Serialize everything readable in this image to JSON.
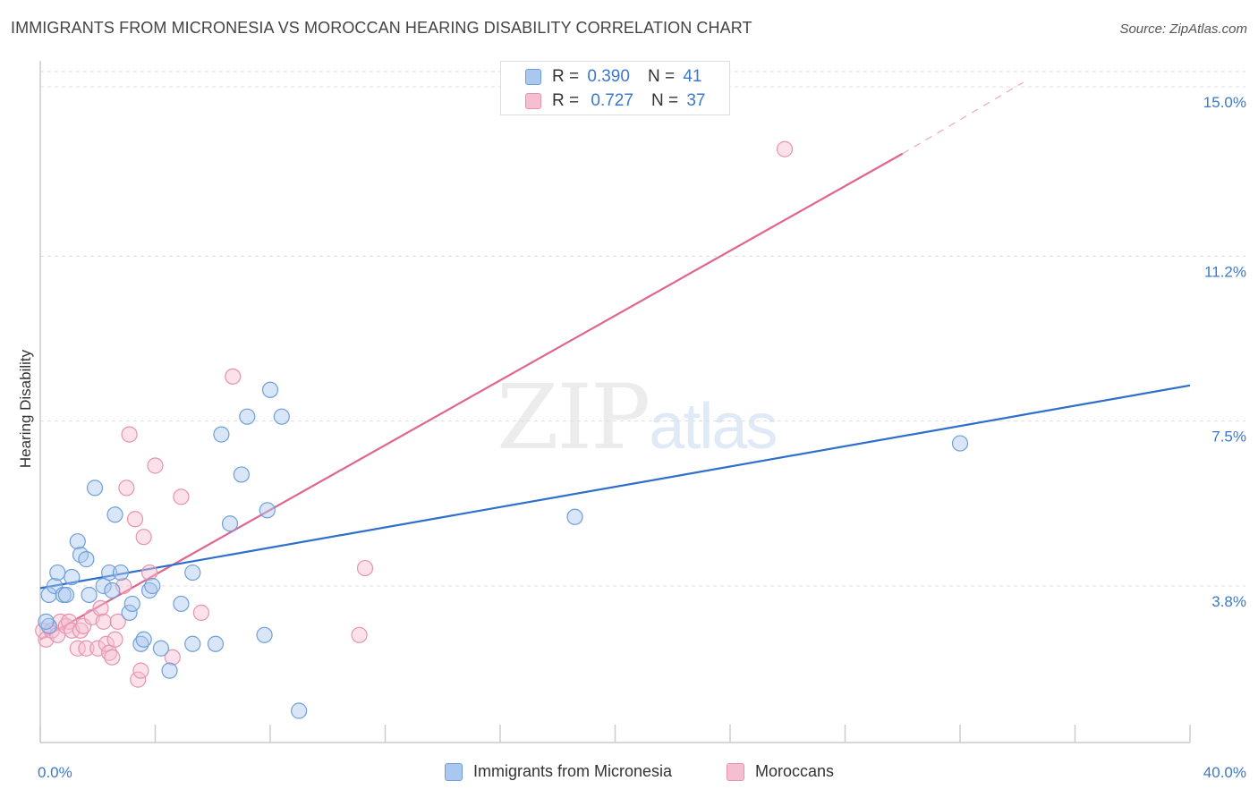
{
  "title": "IMMIGRANTS FROM MICRONESIA VS MOROCCAN HEARING DISABILITY CORRELATION CHART",
  "source": "Source: ZipAtlas.com",
  "watermark": {
    "part1": "ZIP",
    "part2": "atlas"
  },
  "legend": {
    "rows": [
      {
        "r_label": "R =",
        "r_value": "0.390",
        "n_label": "N =",
        "n_value": "41"
      },
      {
        "r_label": "R =",
        "r_value": "0.727",
        "n_label": "N =",
        "n_value": "37"
      }
    ]
  },
  "chart_data": {
    "type": "scatter",
    "title": "IMMIGRANTS FROM MICRONESIA VS MOROCCAN HEARING DISABILITY CORRELATION CHART",
    "xlabel": "",
    "ylabel": "Hearing Disability",
    "xlim": [
      0,
      40
    ],
    "ylim": [
      0,
      15.6
    ],
    "x_tick_labels": [
      "0.0%",
      "40.0%"
    ],
    "y_ticks": [
      3.8,
      7.5,
      11.2,
      15.0
    ],
    "y_tick_labels": [
      "3.8%",
      "7.5%",
      "11.2%",
      "15.0%"
    ],
    "grid": "horizontal dashed",
    "legend_position": "top-center",
    "colors": {
      "micronesia_fill": "#aac8ef",
      "micronesia_stroke": "#6f9fd8",
      "micronesia_line": "#2d6fc9",
      "moroccan_fill": "#f6bfd1",
      "moroccan_stroke": "#e693b0",
      "moroccan_line": "#e0648f",
      "tick_text": "#3b78c9"
    },
    "series": [
      {
        "name": "Immigrants from Micronesia",
        "r": 0.39,
        "n": 41,
        "trend": {
          "x0": 0,
          "y0": 3.75,
          "x1": 40,
          "y1": 8.3
        },
        "points": [
          [
            0.3,
            2.9
          ],
          [
            0.3,
            3.6
          ],
          [
            0.5,
            3.8
          ],
          [
            0.6,
            4.1
          ],
          [
            0.8,
            3.6
          ],
          [
            0.9,
            3.6
          ],
          [
            1.1,
            4.0
          ],
          [
            1.3,
            4.8
          ],
          [
            1.4,
            4.5
          ],
          [
            1.6,
            4.4
          ],
          [
            1.7,
            3.6
          ],
          [
            1.9,
            6.0
          ],
          [
            2.2,
            3.8
          ],
          [
            2.4,
            4.1
          ],
          [
            2.5,
            3.7
          ],
          [
            2.6,
            5.4
          ],
          [
            2.8,
            4.1
          ],
          [
            3.1,
            3.2
          ],
          [
            3.2,
            3.4
          ],
          [
            3.5,
            2.5
          ],
          [
            3.6,
            2.6
          ],
          [
            3.8,
            3.7
          ],
          [
            3.9,
            3.8
          ],
          [
            4.2,
            2.4
          ],
          [
            4.5,
            1.9
          ],
          [
            4.9,
            3.4
          ],
          [
            5.3,
            4.1
          ],
          [
            5.3,
            2.5
          ],
          [
            6.1,
            2.5
          ],
          [
            6.3,
            7.2
          ],
          [
            6.6,
            5.2
          ],
          [
            7.0,
            6.3
          ],
          [
            7.2,
            7.6
          ],
          [
            7.8,
            2.7
          ],
          [
            7.9,
            5.5
          ],
          [
            8.0,
            8.2
          ],
          [
            8.4,
            7.6
          ],
          [
            9.0,
            1.0
          ],
          [
            18.6,
            5.35
          ],
          [
            32.0,
            7.0
          ],
          [
            0.2,
            3.0
          ]
        ]
      },
      {
        "name": "Moroccans",
        "r": 0.727,
        "n": 37,
        "trend": {
          "x0": 0,
          "y0": 2.6,
          "x1": 30,
          "y1": 13.5
        },
        "trend_dashed": {
          "x0": 30,
          "y0": 13.5,
          "x1": 34.2,
          "y1": 15.1
        },
        "points": [
          [
            0.1,
            2.8
          ],
          [
            0.2,
            2.6
          ],
          [
            0.4,
            2.8
          ],
          [
            0.6,
            2.7
          ],
          [
            0.7,
            3.0
          ],
          [
            0.9,
            2.9
          ],
          [
            1.0,
            3.0
          ],
          [
            1.1,
            2.8
          ],
          [
            1.3,
            2.4
          ],
          [
            1.4,
            2.8
          ],
          [
            1.5,
            2.9
          ],
          [
            1.6,
            2.4
          ],
          [
            1.8,
            3.1
          ],
          [
            2.0,
            2.4
          ],
          [
            2.1,
            3.3
          ],
          [
            2.2,
            3.0
          ],
          [
            2.3,
            2.5
          ],
          [
            2.4,
            2.3
          ],
          [
            2.5,
            2.2
          ],
          [
            2.6,
            2.6
          ],
          [
            2.7,
            3.0
          ],
          [
            2.9,
            3.8
          ],
          [
            3.0,
            6.0
          ],
          [
            3.1,
            7.2
          ],
          [
            3.3,
            5.3
          ],
          [
            3.4,
            1.7
          ],
          [
            3.5,
            1.9
          ],
          [
            3.6,
            4.9
          ],
          [
            3.8,
            4.1
          ],
          [
            4.0,
            6.5
          ],
          [
            4.6,
            2.2
          ],
          [
            4.9,
            5.8
          ],
          [
            5.6,
            3.2
          ],
          [
            6.7,
            8.5
          ],
          [
            11.1,
            2.7
          ],
          [
            11.3,
            4.2
          ],
          [
            25.9,
            13.6
          ]
        ]
      }
    ],
    "legend_bottom": [
      "Immigrants from Micronesia",
      "Moroccans"
    ]
  }
}
